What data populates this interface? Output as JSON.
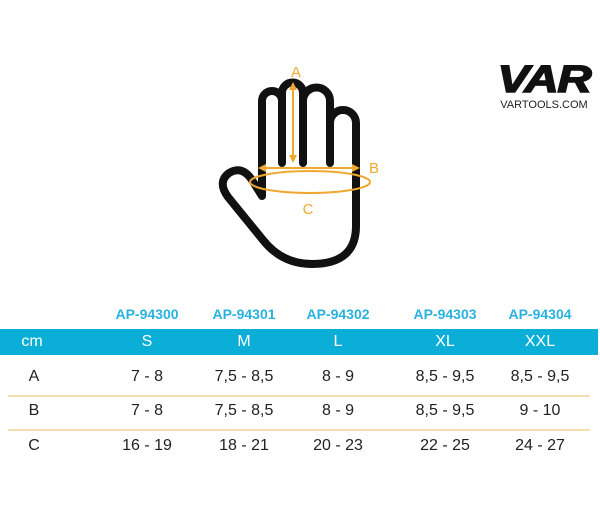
{
  "logo": {
    "brand": "VAR",
    "url": "VARTOOLS.COM"
  },
  "diagram": {
    "labels": {
      "a": "A",
      "b": "B",
      "c": "C"
    },
    "accent_color": "#f0a830"
  },
  "table": {
    "header_color": "#0aaed6",
    "divider_color": "#f6dcae",
    "sku_codes": [
      "AP-94300",
      "AP-94301",
      "AP-94302",
      "AP-94303",
      "AP-94304"
    ],
    "unit": "cm",
    "sizes": [
      "S",
      "M",
      "L",
      "XL",
      "XXL"
    ],
    "rows": [
      {
        "label": "A",
        "values": [
          "7 - 8",
          "7,5 - 8,5",
          "8 - 9",
          "8,5 - 9,5",
          "8,5 - 9,5"
        ]
      },
      {
        "label": "B",
        "values": [
          "7 - 8",
          "7,5 - 8,5",
          "8 - 9",
          "8,5 - 9,5",
          "9 - 10"
        ]
      },
      {
        "label": "C",
        "values": [
          "16 - 19",
          "18 - 21",
          "20 - 23",
          "22 - 25",
          "24 - 27"
        ]
      }
    ]
  }
}
